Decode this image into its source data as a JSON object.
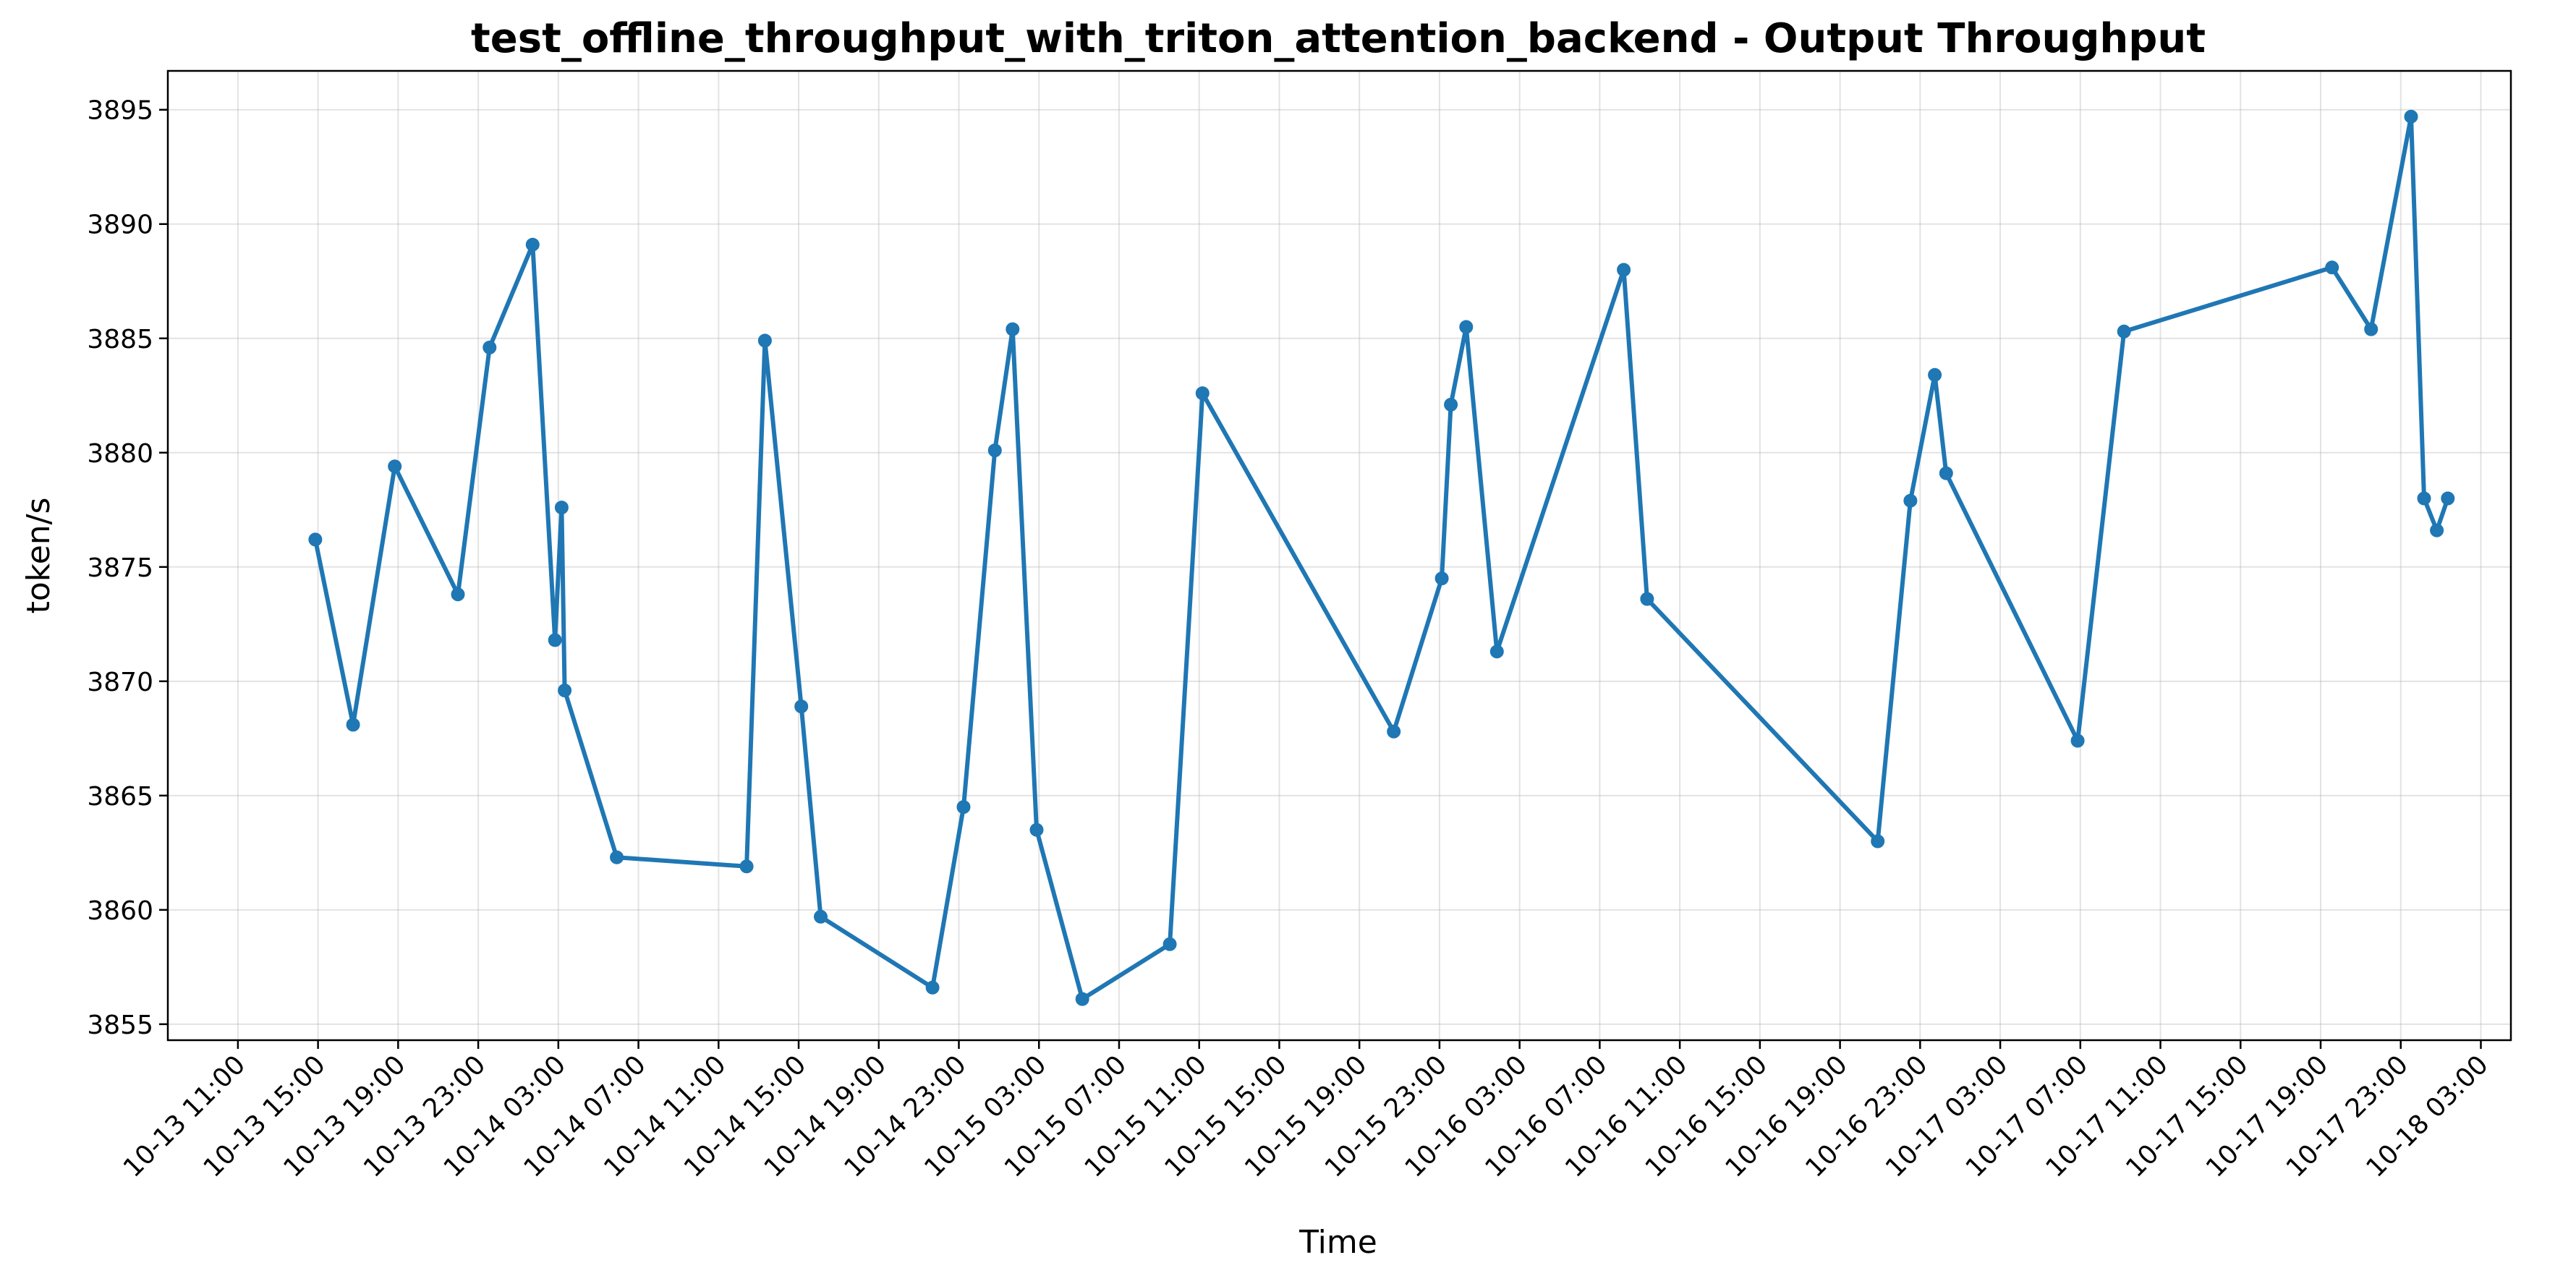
{
  "chart_data": {
    "type": "line",
    "title": "test_offline_throughput_with_triton_attention_backend - Output Throughput",
    "xlabel": "Time",
    "ylabel": "token/s",
    "year": 2025,
    "xlim": [
      "2025-10-13T07:30",
      "2025-10-18T04:30"
    ],
    "ylim": [
      3854.3,
      3896.7
    ],
    "x_ticks": [
      "2025-10-13T11:00",
      "2025-10-13T15:00",
      "2025-10-13T19:00",
      "2025-10-13T23:00",
      "2025-10-14T03:00",
      "2025-10-14T07:00",
      "2025-10-14T11:00",
      "2025-10-14T15:00",
      "2025-10-14T19:00",
      "2025-10-14T23:00",
      "2025-10-15T03:00",
      "2025-10-15T07:00",
      "2025-10-15T11:00",
      "2025-10-15T15:00",
      "2025-10-15T19:00",
      "2025-10-15T23:00",
      "2025-10-16T03:00",
      "2025-10-16T07:00",
      "2025-10-16T11:00",
      "2025-10-16T15:00",
      "2025-10-16T19:00",
      "2025-10-16T23:00",
      "2025-10-17T03:00",
      "2025-10-17T07:00",
      "2025-10-17T11:00",
      "2025-10-17T15:00",
      "2025-10-17T19:00",
      "2025-10-17T23:00",
      "2025-10-18T03:00"
    ],
    "x_tick_labels": [
      "10-13 11:00",
      "10-13 15:00",
      "10-13 19:00",
      "10-13 23:00",
      "10-14 03:00",
      "10-14 07:00",
      "10-14 11:00",
      "10-14 15:00",
      "10-14 19:00",
      "10-14 23:00",
      "10-15 03:00",
      "10-15 07:00",
      "10-15 11:00",
      "10-15 15:00",
      "10-15 19:00",
      "10-15 23:00",
      "10-16 03:00",
      "10-16 07:00",
      "10-16 11:00",
      "10-16 15:00",
      "10-16 19:00",
      "10-16 23:00",
      "10-17 03:00",
      "10-17 07:00",
      "10-17 11:00",
      "10-17 15:00",
      "10-17 19:00",
      "10-17 23:00",
      "10-18 03:00"
    ],
    "y_ticks": [
      3855,
      3860,
      3865,
      3870,
      3875,
      3880,
      3885,
      3890,
      3895
    ],
    "grid": true,
    "color": "#1f77b4",
    "series": [
      {
        "x": [
          "2025-10-13T14:52",
          "2025-10-13T16:45",
          "2025-10-13T18:50",
          "2025-10-13T21:59",
          "2025-10-13T23:34",
          "2025-10-14T01:43",
          "2025-10-14T02:50",
          "2025-10-14T03:10",
          "2025-10-14T03:19",
          "2025-10-14T05:55",
          "2025-10-14T12:24",
          "2025-10-14T13:19",
          "2025-10-14T15:08",
          "2025-10-14T16:06",
          "2025-10-14T21:41",
          "2025-10-14T23:14",
          "2025-10-15T00:48",
          "2025-10-15T01:41",
          "2025-10-15T02:53",
          "2025-10-15T05:10",
          "2025-10-15T09:32",
          "2025-10-15T11:10",
          "2025-10-15T20:43",
          "2025-10-15T23:07",
          "2025-10-15T23:34",
          "2025-10-16T00:20",
          "2025-10-16T01:52",
          "2025-10-16T08:12",
          "2025-10-16T09:22",
          "2025-10-16T20:53",
          "2025-10-16T22:31",
          "2025-10-16T23:44",
          "2025-10-17T00:18",
          "2025-10-17T06:52",
          "2025-10-17T09:11",
          "2025-10-17T19:34",
          "2025-10-17T21:31",
          "2025-10-17T23:31",
          "2025-10-18T00:10",
          "2025-10-18T00:48",
          "2025-10-18T01:21"
        ],
        "y": [
          3876.2,
          3868.1,
          3879.4,
          3873.8,
          3884.6,
          3889.1,
          3871.8,
          3877.6,
          3869.6,
          3862.3,
          3861.9,
          3884.9,
          3868.9,
          3859.7,
          3856.6,
          3864.5,
          3880.1,
          3885.4,
          3863.5,
          3856.1,
          3858.5,
          3882.6,
          3867.8,
          3874.5,
          3882.1,
          3885.5,
          3871.3,
          3888.0,
          3873.6,
          3863.0,
          3877.9,
          3883.4,
          3879.1,
          3867.4,
          3885.3,
          3888.1,
          3885.4,
          3894.7,
          3878.0,
          3876.6,
          3878.0
        ]
      }
    ]
  }
}
